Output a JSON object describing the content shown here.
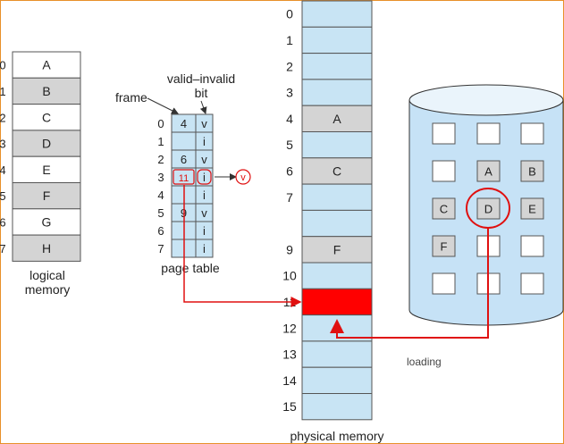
{
  "colors": {
    "frame_border": "#e8902a",
    "cell_light": "#c8e4f4",
    "cell_gray": "#d4d4d4",
    "cell_white": "#ffffff",
    "highlight": "#e01010",
    "disk_fill": "#c6e2f6",
    "disk_top": "#eaf4fb",
    "line": "#333333"
  },
  "logical_memory": {
    "caption_line1": "logical",
    "caption_line2": "memory",
    "indices": [
      "0",
      "1",
      "2",
      "3",
      "4",
      "5",
      "6",
      "7"
    ],
    "pages": [
      "A",
      "B",
      "C",
      "D",
      "E",
      "F",
      "G",
      "H"
    ]
  },
  "page_table": {
    "frame_label": "frame",
    "valid_invalid_label_line1": "valid–invalid",
    "valid_invalid_label_line2": "bit",
    "caption": "page table",
    "indices": [
      "0",
      "1",
      "2",
      "3",
      "4",
      "5",
      "6",
      "7"
    ],
    "frames": [
      "4",
      "",
      "6",
      "11",
      "",
      "9",
      "",
      ""
    ],
    "bits": [
      "v",
      "i",
      "v",
      "i",
      "i",
      "v",
      "i",
      "i"
    ],
    "updated_bit": "v"
  },
  "physical_memory": {
    "caption": "physical memory",
    "indices": [
      "0",
      "1",
      "2",
      "3",
      "4",
      "5",
      "6",
      "7",
      "",
      "9",
      "10",
      "11",
      "12",
      "13",
      "14",
      "15"
    ],
    "contents": [
      "",
      "",
      "",
      "",
      "A",
      "",
      "C",
      "",
      "",
      "F",
      "",
      "",
      "",
      "",
      "",
      ""
    ]
  },
  "backing_store": {
    "loading_label": "loading",
    "slots": [
      "",
      "",
      "",
      "",
      "A",
      "B",
      "C",
      "D",
      "E",
      "F",
      "",
      "",
      "",
      "",
      ""
    ],
    "highlighted": "D"
  }
}
